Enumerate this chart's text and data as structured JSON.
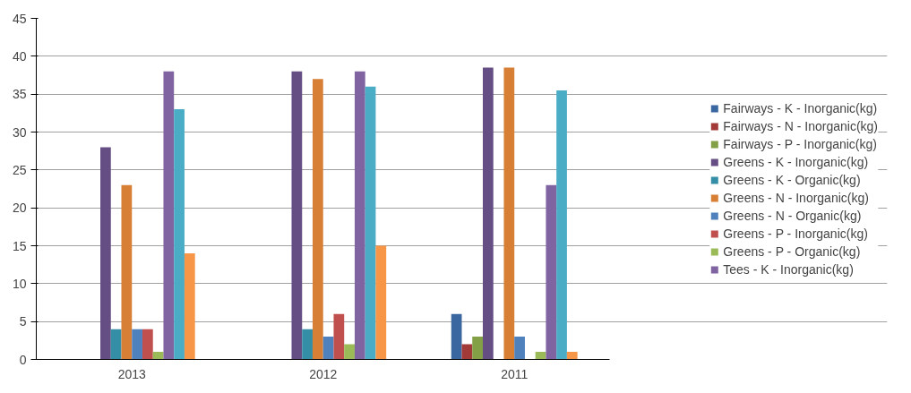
{
  "chart_data": {
    "type": "bar",
    "categories": [
      "2013",
      "2012",
      "2011"
    ],
    "ylim": [
      0,
      45
    ],
    "yticks": [
      0,
      5,
      10,
      15,
      20,
      25,
      30,
      35,
      40,
      45
    ],
    "grid": "y",
    "legend": "right",
    "series": [
      {
        "name": "Fairways - K - Inorganic(kg)",
        "color": "#3a67a0",
        "values": [
          0,
          0,
          6
        ]
      },
      {
        "name": "Fairways - N - Inorganic(kg)",
        "color": "#a23b38",
        "values": [
          0,
          0,
          2
        ]
      },
      {
        "name": "Fairways - P - Inorganic(kg)",
        "color": "#83a046",
        "values": [
          0,
          0,
          3
        ]
      },
      {
        "name": "Greens - K - Inorganic(kg)",
        "color": "#654e83",
        "values": [
          28,
          38,
          38.5
        ]
      },
      {
        "name": "Greens - K - Organic(kg)",
        "color": "#348ea6",
        "values": [
          4,
          4,
          0
        ]
      },
      {
        "name": "Greens - N - Inorganic(kg)",
        "color": "#d67f35",
        "values": [
          23,
          37,
          38.5
        ]
      },
      {
        "name": "Greens - N - Organic(kg)",
        "color": "#4f81bd",
        "values": [
          4,
          3,
          3
        ]
      },
      {
        "name": "Greens - P - Inorganic(kg)",
        "color": "#c0504d",
        "values": [
          4,
          6,
          0
        ]
      },
      {
        "name": "Greens - P - Organic(kg)",
        "color": "#9bbb59",
        "values": [
          1,
          2,
          1
        ]
      },
      {
        "name": "Tees - K - Inorganic(kg)",
        "color": "#8064a2",
        "values": [
          38,
          38,
          23
        ]
      },
      {
        "color": "#4bacc6",
        "values": [
          33,
          36,
          35.5
        ]
      },
      {
        "color": "#f79646",
        "values": [
          14,
          15,
          1
        ]
      }
    ]
  }
}
